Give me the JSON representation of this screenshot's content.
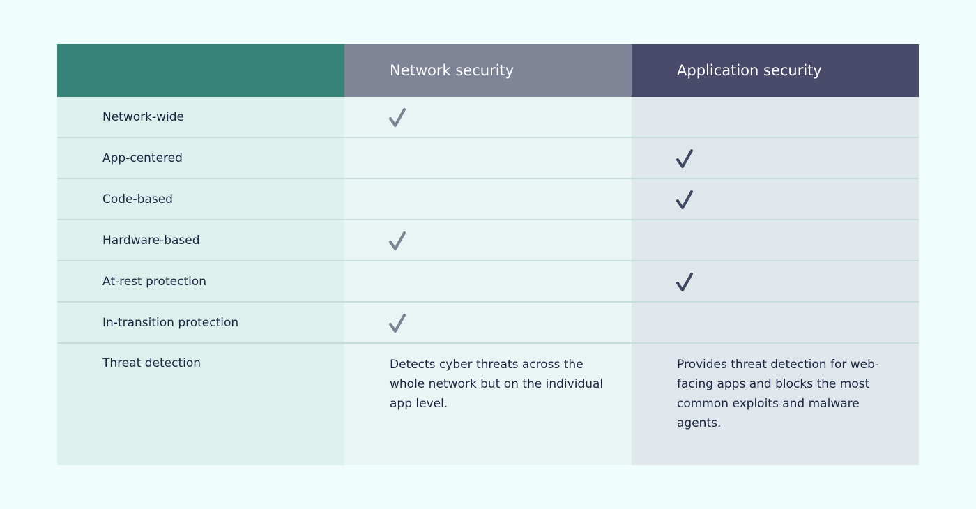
{
  "table": {
    "header": [
      "",
      "Network security",
      "Application security"
    ],
    "rows": [
      [
        "Network-wide",
        true,
        false
      ],
      [
        "App-centered",
        false,
        true
      ],
      [
        "Code-based",
        false,
        true
      ],
      [
        "Hardware-based",
        true,
        false
      ],
      [
        "At-rest protection",
        false,
        true
      ],
      [
        "In-transition protection",
        true,
        false
      ],
      [
        "Threat detection",
        "Detects cyber threats across the whole network but on the individual app level.",
        "Provides threat detection for web-facing apps and blocks the most common exploits and malware agents."
      ]
    ]
  }
}
